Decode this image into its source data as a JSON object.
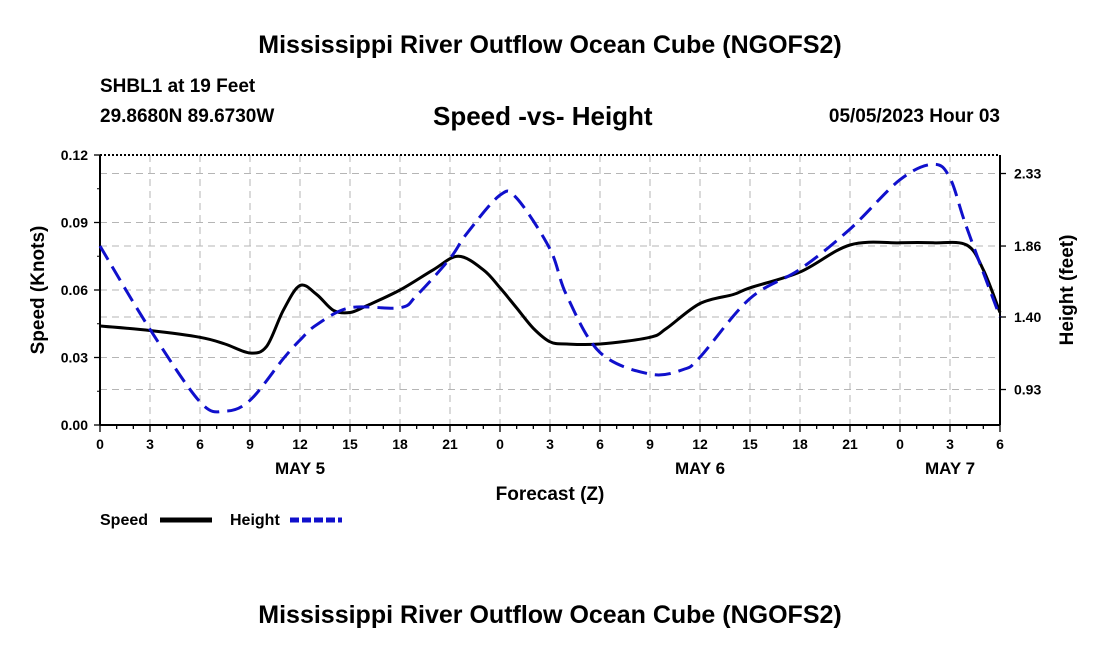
{
  "header": {
    "title": "Mississippi River Outflow Ocean Cube (NGOFS2)",
    "station": "SHBL1 at 19 Feet",
    "coords": "29.8680N  89.6730W",
    "datetime": "05/05/2023 Hour 03",
    "footer_title": "Mississippi River Outflow Ocean Cube (NGOFS2)"
  },
  "chart_data": {
    "type": "line",
    "title": "Speed -vs- Height",
    "xlabel": "Forecast (Z)",
    "ylabel": "Speed (Knots)",
    "y2label": "Height (feet)",
    "xlim": [
      0,
      54
    ],
    "ylim": [
      0,
      0.12
    ],
    "y2lim": [
      0.7,
      2.45
    ],
    "x_ticks": [
      0,
      3,
      6,
      9,
      12,
      15,
      18,
      21,
      24,
      27,
      30,
      33,
      36,
      39,
      42,
      45,
      48,
      51,
      54
    ],
    "x_tick_labels": [
      "0",
      "3",
      "6",
      "9",
      "12",
      "15",
      "18",
      "21",
      "0",
      "3",
      "6",
      "9",
      "12",
      "15",
      "18",
      "21",
      "0",
      "3",
      "6"
    ],
    "y_ticks": [
      0,
      0.03,
      0.06,
      0.09,
      0.12
    ],
    "y_tick_labels": [
      "0.00",
      "0.03",
      "0.06",
      "0.09",
      "0.12"
    ],
    "y2_ticks": [
      0.93,
      1.4,
      1.86,
      2.33
    ],
    "y2_tick_labels": [
      "0.93",
      "1.40",
      "1.86",
      "2.33"
    ],
    "day_labels": [
      {
        "x": 12,
        "label": "MAY 5"
      },
      {
        "x": 36,
        "label": "MAY 6"
      },
      {
        "x": 51,
        "label": "MAY 7"
      }
    ],
    "series": [
      {
        "name": "Speed",
        "axis": "left",
        "color": "#000000",
        "style": "solid",
        "x": [
          0,
          3,
          6,
          7.5,
          9,
          10,
          11,
          12,
          13,
          14,
          15,
          16,
          18,
          20,
          21.5,
          23,
          24,
          25,
          26,
          27,
          28,
          30,
          33,
          34,
          36,
          38,
          39,
          42,
          45,
          48,
          50,
          52,
          53,
          54
        ],
        "y": [
          0.044,
          0.042,
          0.039,
          0.036,
          0.032,
          0.035,
          0.051,
          0.062,
          0.058,
          0.051,
          0.05,
          0.053,
          0.06,
          0.069,
          0.075,
          0.069,
          0.061,
          0.052,
          0.043,
          0.037,
          0.036,
          0.036,
          0.039,
          0.043,
          0.054,
          0.058,
          0.061,
          0.068,
          0.08,
          0.081,
          0.081,
          0.08,
          0.069,
          0.05
        ]
      },
      {
        "name": "Height",
        "axis": "right",
        "color": "#1010cc",
        "style": "dashed",
        "x": [
          0,
          3,
          6,
          7.5,
          9,
          11,
          12,
          13,
          15,
          18,
          19,
          21,
          22,
          24,
          25,
          27,
          28,
          30,
          33,
          35,
          36,
          39,
          42,
          45,
          48,
          50,
          51,
          52,
          54
        ],
        "y": [
          1.86,
          1.32,
          0.85,
          0.79,
          0.86,
          1.13,
          1.25,
          1.35,
          1.46,
          1.46,
          1.54,
          1.78,
          1.94,
          2.19,
          2.17,
          1.84,
          1.54,
          1.17,
          1.03,
          1.06,
          1.14,
          1.52,
          1.71,
          1.97,
          2.29,
          2.39,
          2.3,
          1.98,
          1.4
        ]
      }
    ],
    "legend": [
      {
        "label": "Speed",
        "color": "#000000",
        "style": "solid"
      },
      {
        "label": "Height",
        "color": "#1010cc",
        "style": "dashed"
      }
    ]
  }
}
